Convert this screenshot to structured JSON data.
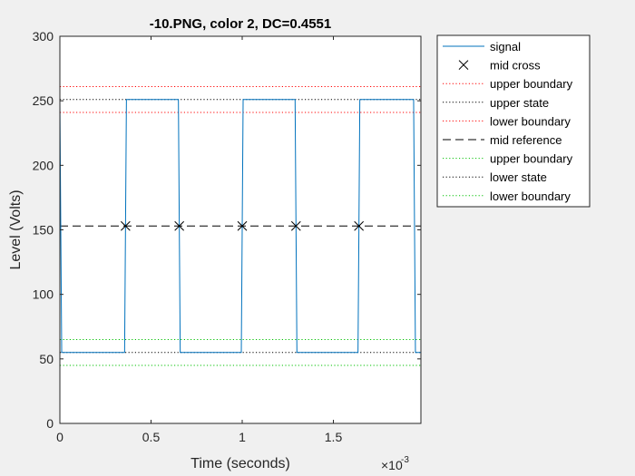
{
  "chart_data": {
    "type": "line",
    "title": "-10.PNG, color 2, DC=0.4551",
    "xlabel": "Time (seconds)",
    "ylabel": "Level (Volts)",
    "x_exponent_base": "×10",
    "x_exponent_power": "-3",
    "xlim": [
      0,
      1.98
    ],
    "ylim": [
      0,
      300
    ],
    "x_ticks": [
      0,
      0.5,
      1,
      1.5
    ],
    "x_tick_labels": [
      "0",
      "0.5",
      "1",
      "1.5"
    ],
    "y_ticks": [
      0,
      50,
      100,
      150,
      200,
      250,
      300
    ],
    "y_tick_labels": [
      "0",
      "50",
      "100",
      "150",
      "200",
      "250",
      "300"
    ],
    "grid": false,
    "legend_position": "outside-right",
    "series": [
      {
        "name": "signal",
        "style": "line",
        "color": "#0072BD",
        "x": [
          0.0,
          0.005,
          0.01,
          0.355,
          0.36,
          0.365,
          0.65,
          0.655,
          0.66,
          0.995,
          1.0,
          1.005,
          1.29,
          1.295,
          1.3,
          1.635,
          1.64,
          1.645,
          1.94,
          1.945,
          1.95,
          1.98
        ],
        "y": [
          251,
          150,
          55,
          55,
          152,
          251,
          251,
          152,
          55,
          55,
          152,
          251,
          251,
          152,
          55,
          55,
          152,
          251,
          251,
          152,
          55,
          55
        ]
      },
      {
        "name": "mid cross",
        "style": "marker-x",
        "color": "#000000",
        "x": [
          0.36,
          0.655,
          1.0,
          1.295,
          1.64
        ],
        "y": [
          153,
          153,
          153,
          153,
          153
        ]
      },
      {
        "name": "upper boundary",
        "style": "dotted",
        "color": "#FF0000",
        "y": 261
      },
      {
        "name": "upper state",
        "style": "dotted",
        "color": "#000000",
        "y": 251
      },
      {
        "name": "lower boundary",
        "style": "dotted",
        "color": "#FF0000",
        "y": 241
      },
      {
        "name": "mid reference",
        "style": "dashed",
        "color": "#000000",
        "y": 153
      },
      {
        "name": "upper boundary",
        "style": "dotted",
        "color": "#00C000",
        "y": 65
      },
      {
        "name": "lower state",
        "style": "dotted",
        "color": "#000000",
        "y": 55
      },
      {
        "name": "lower boundary",
        "style": "dotted",
        "color": "#00C000",
        "y": 45
      }
    ]
  }
}
